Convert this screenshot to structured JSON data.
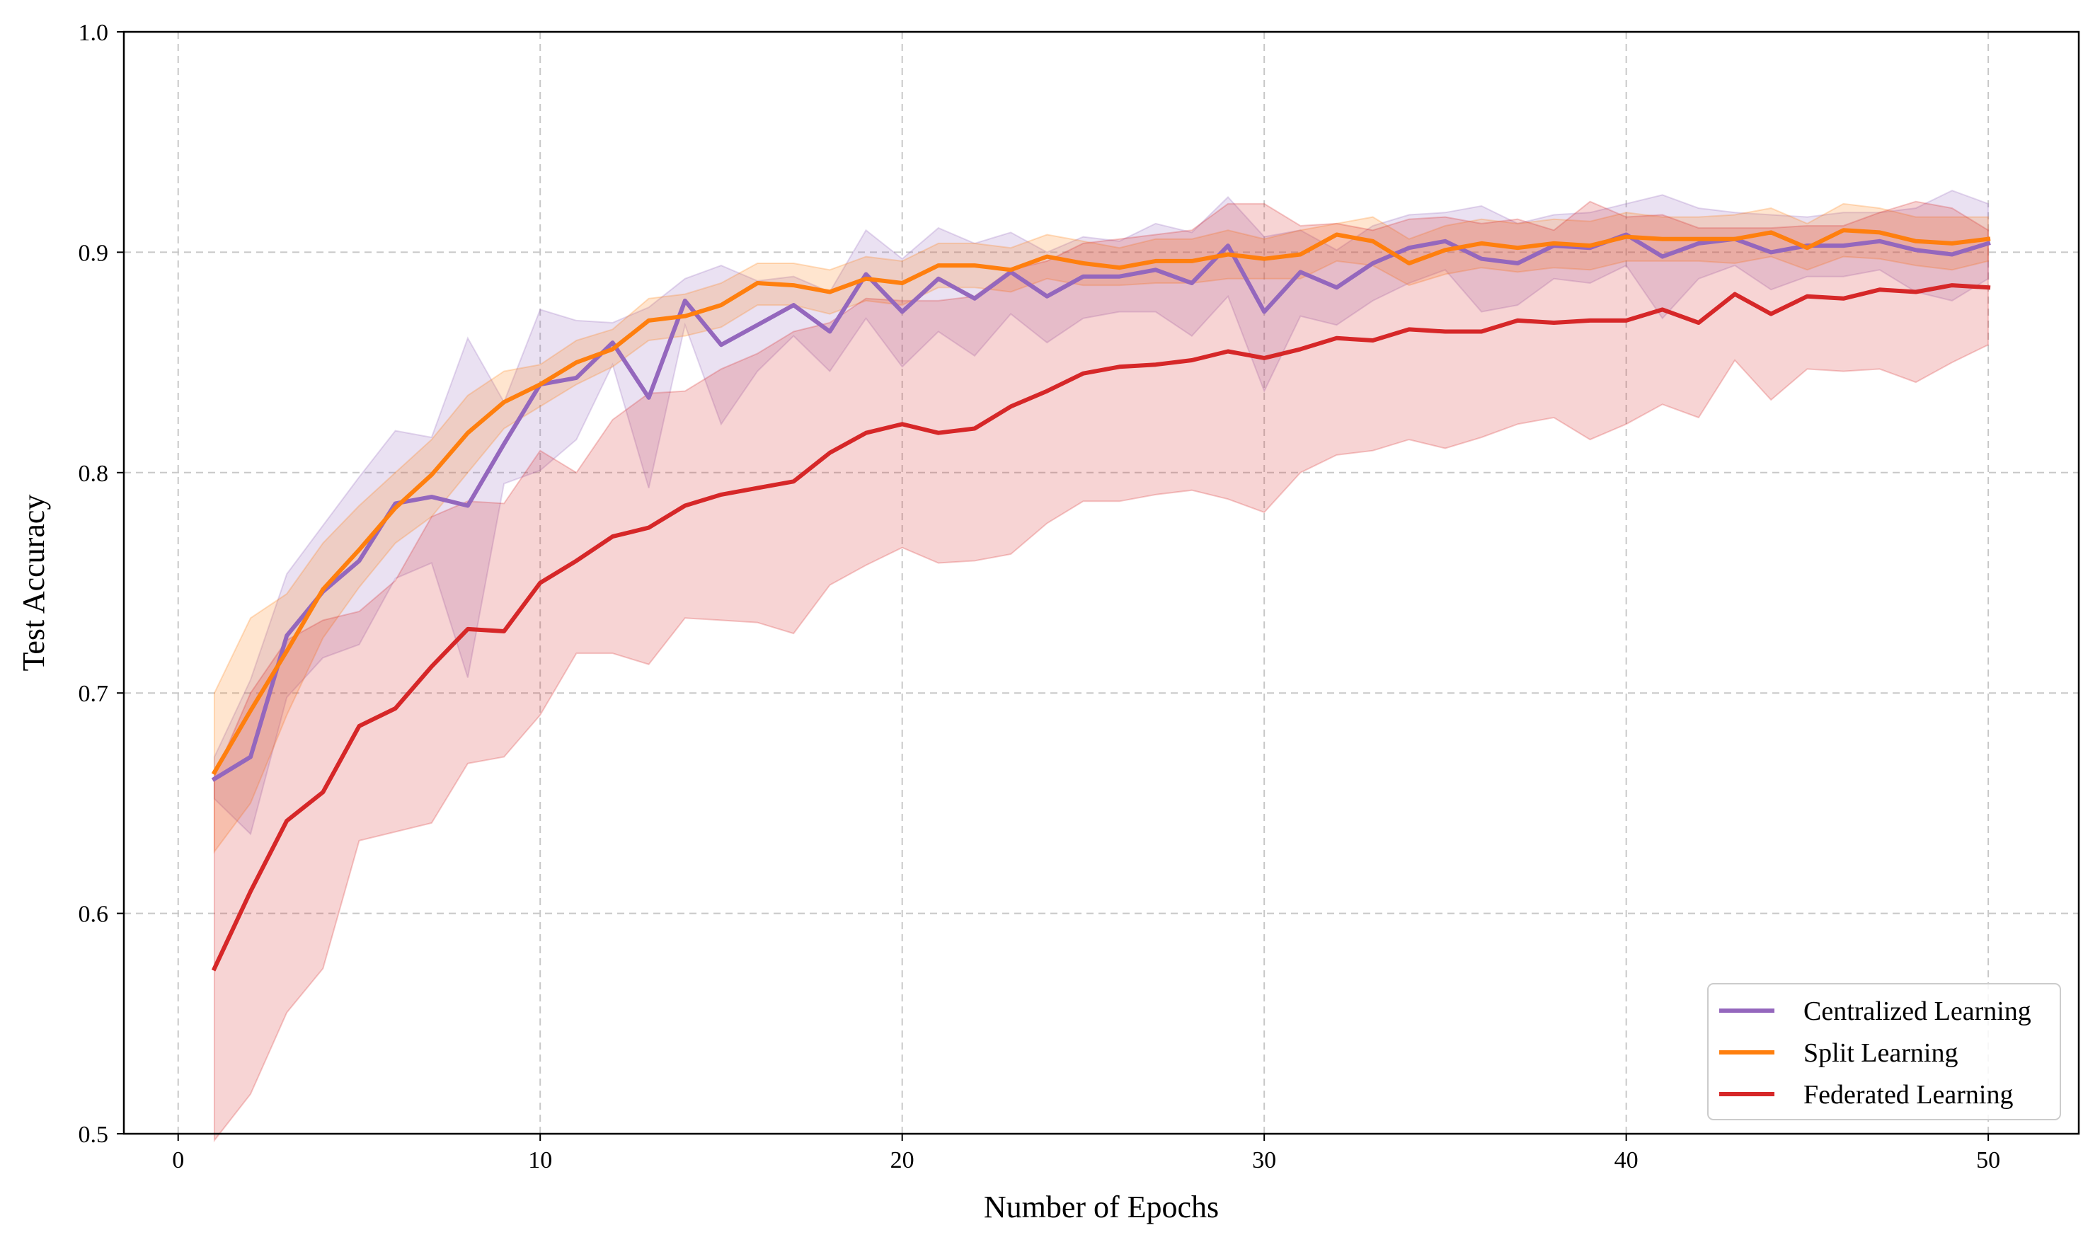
{
  "chart_data": {
    "type": "line",
    "title": "",
    "xlabel": "Number of Epochs",
    "ylabel": "Test Accuracy",
    "xlim": [
      -1.5,
      52.5
    ],
    "ylim": [
      0.5,
      1.0
    ],
    "xticks": [
      0,
      10,
      20,
      30,
      40,
      50
    ],
    "xtick_labels": [
      "0",
      "10",
      "20",
      "30",
      "40",
      "50"
    ],
    "yticks": [
      0.5,
      0.6,
      0.7,
      0.8,
      0.9,
      1.0
    ],
    "ytick_labels": [
      "0.5",
      "0.6",
      "0.7",
      "0.8",
      "0.9",
      "1.0"
    ],
    "grid": true,
    "legend_position": "lower-right",
    "x": [
      1,
      2,
      3,
      4,
      5,
      6,
      7,
      8,
      9,
      10,
      11,
      12,
      13,
      14,
      15,
      16,
      17,
      18,
      19,
      20,
      21,
      22,
      23,
      24,
      25,
      26,
      27,
      28,
      29,
      30,
      31,
      32,
      33,
      34,
      35,
      36,
      37,
      38,
      39,
      40,
      41,
      42,
      43,
      44,
      45,
      46,
      47,
      48,
      49,
      50
    ],
    "series": [
      {
        "name": "Centralized Learning",
        "color": "#9467bd",
        "values": [
          0.661,
          0.671,
          0.726,
          0.746,
          0.76,
          0.786,
          0.789,
          0.785,
          0.813,
          0.84,
          0.843,
          0.859,
          0.834,
          0.878,
          0.858,
          0.867,
          0.876,
          0.864,
          0.89,
          0.873,
          0.888,
          0.879,
          0.891,
          0.88,
          0.889,
          0.889,
          0.892,
          0.886,
          0.903,
          0.873,
          0.891,
          0.884,
          0.895,
          0.902,
          0.905,
          0.897,
          0.895,
          0.903,
          0.902,
          0.908,
          0.898,
          0.904,
          0.906,
          0.9,
          0.903,
          0.903,
          0.905,
          0.901,
          0.899,
          0.904
        ],
        "lower": [
          0.652,
          0.636,
          0.698,
          0.716,
          0.722,
          0.752,
          0.759,
          0.707,
          0.795,
          0.801,
          0.815,
          0.849,
          0.793,
          0.867,
          0.822,
          0.846,
          0.862,
          0.846,
          0.87,
          0.848,
          0.864,
          0.853,
          0.872,
          0.859,
          0.87,
          0.873,
          0.873,
          0.862,
          0.88,
          0.837,
          0.871,
          0.867,
          0.878,
          0.886,
          0.892,
          0.873,
          0.876,
          0.888,
          0.886,
          0.894,
          0.87,
          0.888,
          0.894,
          0.883,
          0.889,
          0.889,
          0.892,
          0.882,
          0.878,
          0.888
        ],
        "upper": [
          0.671,
          0.706,
          0.754,
          0.776,
          0.798,
          0.819,
          0.816,
          0.861,
          0.832,
          0.874,
          0.869,
          0.868,
          0.875,
          0.888,
          0.894,
          0.887,
          0.889,
          0.882,
          0.91,
          0.897,
          0.911,
          0.904,
          0.909,
          0.9,
          0.907,
          0.905,
          0.913,
          0.909,
          0.925,
          0.907,
          0.91,
          0.901,
          0.912,
          0.917,
          0.918,
          0.921,
          0.913,
          0.917,
          0.918,
          0.922,
          0.926,
          0.92,
          0.918,
          0.917,
          0.916,
          0.918,
          0.918,
          0.92,
          0.928,
          0.922
        ]
      },
      {
        "name": "Split Learning",
        "color": "#ff7f0e",
        "values": [
          0.664,
          0.692,
          0.719,
          0.747,
          0.765,
          0.784,
          0.799,
          0.818,
          0.832,
          0.84,
          0.85,
          0.856,
          0.869,
          0.871,
          0.876,
          0.886,
          0.885,
          0.882,
          0.888,
          0.886,
          0.894,
          0.894,
          0.892,
          0.898,
          0.895,
          0.893,
          0.896,
          0.896,
          0.899,
          0.897,
          0.899,
          0.908,
          0.905,
          0.895,
          0.901,
          0.904,
          0.902,
          0.904,
          0.903,
          0.907,
          0.906,
          0.906,
          0.906,
          0.909,
          0.902,
          0.91,
          0.909,
          0.905,
          0.904,
          0.906
        ],
        "lower": [
          0.628,
          0.65,
          0.69,
          0.725,
          0.748,
          0.768,
          0.78,
          0.8,
          0.82,
          0.83,
          0.84,
          0.848,
          0.86,
          0.862,
          0.866,
          0.876,
          0.876,
          0.872,
          0.878,
          0.876,
          0.884,
          0.884,
          0.882,
          0.888,
          0.885,
          0.885,
          0.886,
          0.886,
          0.888,
          0.888,
          0.888,
          0.896,
          0.894,
          0.885,
          0.89,
          0.893,
          0.891,
          0.893,
          0.892,
          0.896,
          0.896,
          0.896,
          0.895,
          0.898,
          0.892,
          0.898,
          0.897,
          0.894,
          0.892,
          0.896
        ],
        "upper": [
          0.7,
          0.734,
          0.745,
          0.768,
          0.785,
          0.8,
          0.815,
          0.835,
          0.846,
          0.849,
          0.86,
          0.865,
          0.879,
          0.881,
          0.886,
          0.895,
          0.895,
          0.892,
          0.898,
          0.896,
          0.904,
          0.904,
          0.902,
          0.908,
          0.905,
          0.902,
          0.906,
          0.906,
          0.91,
          0.906,
          0.91,
          0.913,
          0.916,
          0.906,
          0.912,
          0.915,
          0.913,
          0.915,
          0.914,
          0.918,
          0.916,
          0.916,
          0.917,
          0.92,
          0.913,
          0.922,
          0.92,
          0.916,
          0.916,
          0.916
        ]
      },
      {
        "name": "Federated Learning",
        "color": "#d62728",
        "values": [
          0.575,
          0.61,
          0.642,
          0.655,
          0.685,
          0.693,
          0.712,
          0.729,
          0.728,
          0.75,
          0.76,
          0.771,
          0.775,
          0.785,
          0.79,
          0.793,
          0.796,
          0.809,
          0.818,
          0.822,
          0.818,
          0.82,
          0.83,
          0.837,
          0.845,
          0.848,
          0.849,
          0.851,
          0.855,
          0.852,
          0.856,
          0.861,
          0.86,
          0.865,
          0.864,
          0.864,
          0.869,
          0.868,
          0.869,
          0.869,
          0.874,
          0.868,
          0.881,
          0.872,
          0.88,
          0.879,
          0.883,
          0.882,
          0.885,
          0.884
        ],
        "lower": [
          0.497,
          0.518,
          0.555,
          0.575,
          0.633,
          0.637,
          0.641,
          0.668,
          0.671,
          0.69,
          0.718,
          0.718,
          0.713,
          0.734,
          0.733,
          0.732,
          0.727,
          0.749,
          0.758,
          0.766,
          0.759,
          0.76,
          0.763,
          0.777,
          0.787,
          0.787,
          0.79,
          0.792,
          0.788,
          0.782,
          0.8,
          0.808,
          0.81,
          0.815,
          0.811,
          0.816,
          0.822,
          0.825,
          0.815,
          0.822,
          0.831,
          0.825,
          0.851,
          0.833,
          0.847,
          0.846,
          0.847,
          0.841,
          0.85,
          0.858
        ],
        "upper": [
          0.662,
          0.7,
          0.724,
          0.733,
          0.737,
          0.751,
          0.78,
          0.787,
          0.786,
          0.81,
          0.8,
          0.824,
          0.836,
          0.837,
          0.847,
          0.854,
          0.864,
          0.868,
          0.879,
          0.878,
          0.878,
          0.88,
          0.892,
          0.896,
          0.904,
          0.906,
          0.908,
          0.91,
          0.922,
          0.922,
          0.912,
          0.913,
          0.91,
          0.915,
          0.916,
          0.913,
          0.915,
          0.91,
          0.923,
          0.916,
          0.917,
          0.911,
          0.911,
          0.911,
          0.912,
          0.912,
          0.918,
          0.923,
          0.92,
          0.91
        ]
      }
    ]
  }
}
